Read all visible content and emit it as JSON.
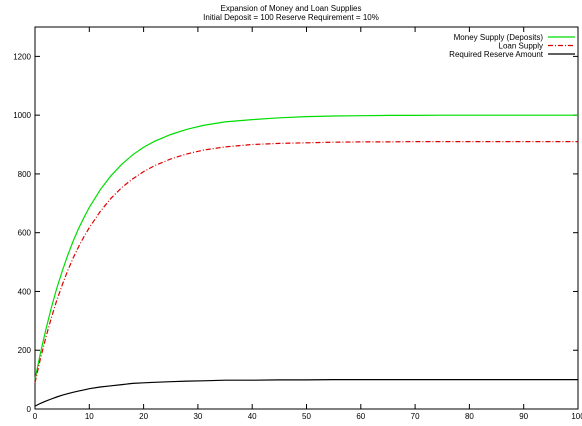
{
  "chart_data": {
    "type": "line",
    "title": "Expansion of Money and Loan Supplies",
    "subtitle": "Initial Deposit = 100 Reserve Requirement = 10%",
    "xlabel": "",
    "ylabel": "",
    "xlim": [
      0,
      100
    ],
    "ylim": [
      0,
      1300
    ],
    "xticks": [
      0,
      10,
      20,
      30,
      40,
      50,
      60,
      70,
      80,
      90,
      100
    ],
    "yticks": [
      0,
      200,
      400,
      600,
      800,
      1000,
      1200
    ],
    "grid": false,
    "legend_position": "top-right",
    "x": [
      0,
      1,
      2,
      3,
      4,
      5,
      6,
      7,
      8,
      9,
      10,
      12,
      14,
      16,
      18,
      20,
      22,
      25,
      28,
      31,
      35,
      40,
      45,
      50,
      55,
      60,
      65,
      70,
      75,
      80,
      85,
      90,
      95,
      100
    ],
    "series": [
      {
        "name": "Money Supply (Deposits)",
        "color": "#00dd00",
        "dash": "solid",
        "values": [
          100,
          190,
          271,
          344,
          410,
          469,
          522,
          570,
          613,
          651,
          686,
          746,
          794,
          833,
          865,
          891,
          911,
          934,
          952,
          965,
          977,
          985,
          991,
          995,
          997,
          998,
          999,
          999,
          1000,
          1000,
          1000,
          1000,
          1000,
          1000
        ]
      },
      {
        "name": "Loan Supply",
        "color": "#dd0000",
        "dash": "dash-dot",
        "values": [
          90,
          171,
          244,
          310,
          369,
          422,
          470,
          513,
          551,
          586,
          617,
          672,
          717,
          754,
          783,
          808,
          828,
          851,
          868,
          881,
          892,
          900,
          904,
          906,
          908,
          909,
          909,
          910,
          910,
          910,
          910,
          910,
          910,
          910
        ]
      },
      {
        "name": "Required Reserve Amount",
        "color": "#000000",
        "dash": "solid",
        "values": [
          10,
          19,
          27,
          34,
          41,
          47,
          52,
          57,
          61,
          65,
          69,
          75,
          79,
          83,
          87,
          89,
          91,
          93,
          95,
          96,
          98,
          98,
          99,
          99,
          100,
          100,
          100,
          100,
          100,
          100,
          100,
          100,
          100,
          100
        ]
      }
    ]
  }
}
